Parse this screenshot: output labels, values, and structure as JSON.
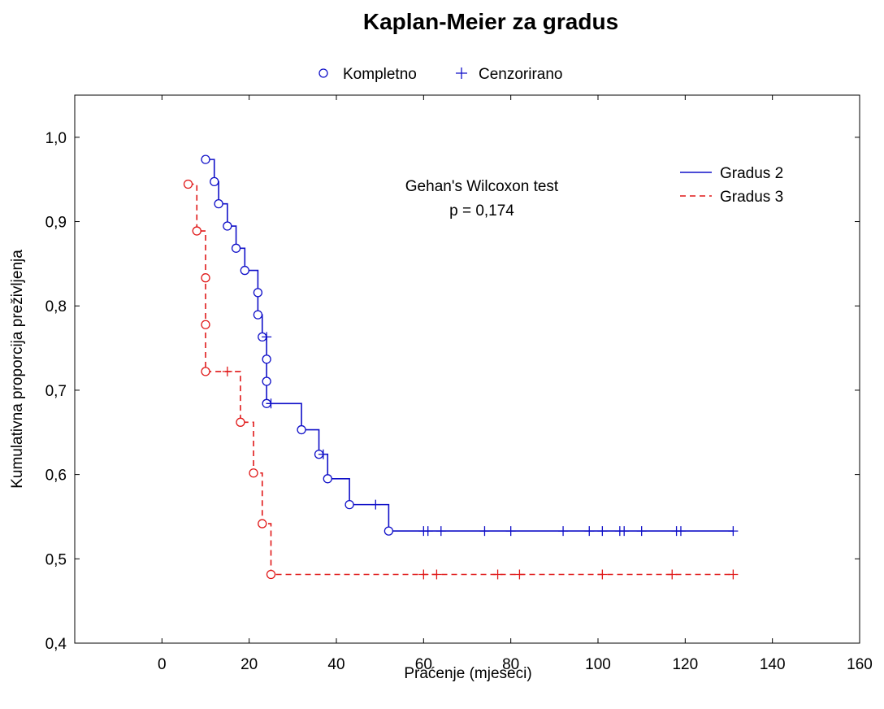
{
  "chart_data": {
    "type": "line",
    "title": "Kaplan-Meier za gradus",
    "xlabel": "Praćenje (mjeseci)",
    "ylabel": "Kumulativna proporcija preživljenja",
    "xlim": [
      -20,
      160
    ],
    "ylim": [
      0.4,
      1.05
    ],
    "x_ticks": [
      0,
      20,
      40,
      60,
      80,
      100,
      120,
      140,
      160
    ],
    "x_tick_labels": [
      "0",
      "20",
      "40",
      "60",
      "80",
      "100",
      "120",
      "140",
      "160"
    ],
    "y_ticks": [
      0.4,
      0.5,
      0.6,
      0.7,
      0.8,
      0.9,
      1.0
    ],
    "y_tick_labels": [
      "0,4",
      "0,5",
      "0,6",
      "0,7",
      "0,8",
      "0,9",
      "1,0"
    ],
    "grid": false,
    "marker_legend": {
      "placement": "top-center",
      "items": [
        {
          "label": "Kompletno",
          "marker": "circle"
        },
        {
          "label": "Cenzorirano",
          "marker": "plus"
        }
      ]
    },
    "series_legend_placement": "top-right",
    "annotation": {
      "line1": "Gehan's Wilcoxon test",
      "line2": "p = 0,174"
    },
    "series": [
      {
        "name": "Gradus 2",
        "color": "#1010c8",
        "style": "solid",
        "start": 0.9737,
        "steps": [
          [
            12,
            0.9474
          ],
          [
            13,
            0.9211
          ],
          [
            15,
            0.8947
          ],
          [
            17,
            0.8684
          ],
          [
            19,
            0.8421
          ],
          [
            22,
            0.8158
          ],
          [
            22,
            0.7895
          ],
          [
            23,
            0.7632
          ],
          [
            24,
            0.7368
          ],
          [
            24,
            0.7105
          ],
          [
            24,
            0.6842
          ],
          [
            32,
            0.6531
          ],
          [
            36,
            0.624
          ],
          [
            38,
            0.595
          ],
          [
            43,
            0.5643
          ],
          [
            52,
            0.533
          ]
        ],
        "events": [
          [
            10,
            0.9737
          ],
          [
            12,
            0.9474
          ],
          [
            13,
            0.9211
          ],
          [
            15,
            0.8947
          ],
          [
            17,
            0.8684
          ],
          [
            19,
            0.8421
          ],
          [
            22,
            0.8158
          ],
          [
            22,
            0.7895
          ],
          [
            23,
            0.7632
          ],
          [
            24,
            0.7368
          ],
          [
            24,
            0.7105
          ],
          [
            24,
            0.6842
          ],
          [
            32,
            0.6531
          ],
          [
            36,
            0.624
          ],
          [
            38,
            0.595
          ],
          [
            43,
            0.5643
          ],
          [
            52,
            0.533
          ]
        ],
        "censored": [
          [
            24,
            0.7632
          ],
          [
            25,
            0.6842
          ],
          [
            37,
            0.624
          ],
          [
            49,
            0.5643
          ],
          [
            60,
            0.533
          ],
          [
            61,
            0.533
          ],
          [
            64,
            0.533
          ],
          [
            74,
            0.533
          ],
          [
            80,
            0.533
          ],
          [
            92,
            0.533
          ],
          [
            98,
            0.533
          ],
          [
            101,
            0.533
          ],
          [
            105,
            0.533
          ],
          [
            106,
            0.533
          ],
          [
            110,
            0.533
          ],
          [
            118,
            0.533
          ],
          [
            119,
            0.533
          ],
          [
            131,
            0.533
          ]
        ],
        "end_x": 131
      },
      {
        "name": "Gradus 3",
        "color": "#e01818",
        "style": "dashed",
        "start": 0.9444,
        "steps": [
          [
            8,
            0.8889
          ],
          [
            10,
            0.8333
          ],
          [
            10,
            0.7778
          ],
          [
            10,
            0.7222
          ],
          [
            18,
            0.662
          ],
          [
            21,
            0.6018
          ],
          [
            23,
            0.5417
          ],
          [
            25,
            0.4815
          ]
        ],
        "events": [
          [
            6,
            0.9444
          ],
          [
            8,
            0.8889
          ],
          [
            10,
            0.8333
          ],
          [
            10,
            0.7778
          ],
          [
            10,
            0.7222
          ],
          [
            18,
            0.662
          ],
          [
            21,
            0.6018
          ],
          [
            23,
            0.5417
          ],
          [
            25,
            0.4815
          ]
        ],
        "censored": [
          [
            15,
            0.7222
          ],
          [
            60,
            0.4815
          ],
          [
            63,
            0.4815
          ],
          [
            77,
            0.4815
          ],
          [
            82,
            0.4815
          ],
          [
            101,
            0.4815
          ],
          [
            117,
            0.4815
          ],
          [
            131,
            0.4815
          ]
        ],
        "end_x": 131
      }
    ]
  }
}
